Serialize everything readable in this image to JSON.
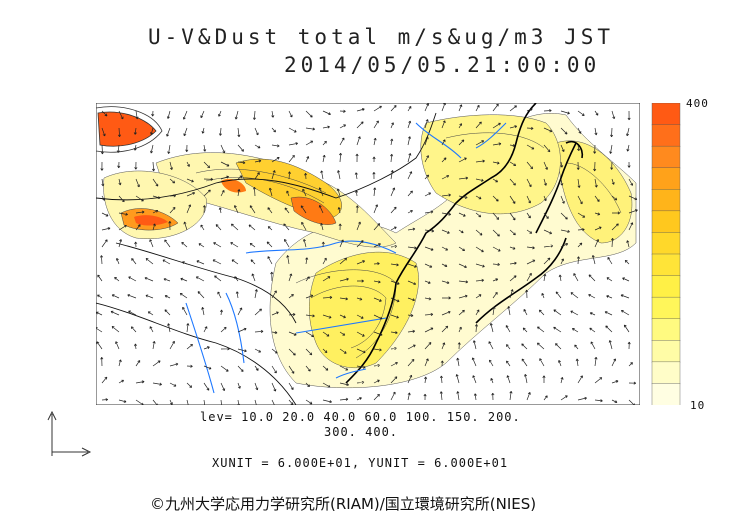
{
  "title_line1": "U-V&Dust total m/s&ug/m3 JST",
  "title_line2": "2014/05/05.21:00:00",
  "levels_line1": "lev= 10.0 20.0 40.0 60.0 100. 150. 200.",
  "levels_line2": "300. 400.",
  "unit_text": "XUNIT = 6.000E+01, YUNIT = 6.000E+01",
  "scale": {
    "max_label": "400",
    "min_label": "10",
    "colors": [
      "#ff5a14",
      "#ff6f1a",
      "#ff8a1e",
      "#ffa21a",
      "#ffb41a",
      "#ffc81e",
      "#ffd82a",
      "#ffe438",
      "#fff046",
      "#fff65a",
      "#fffa80",
      "#fffca6",
      "#fffdc8",
      "#fffee2"
    ]
  },
  "copyright": "©九州大学応用力学研究所(RIAM)/国立環境研究所(NIES)"
}
